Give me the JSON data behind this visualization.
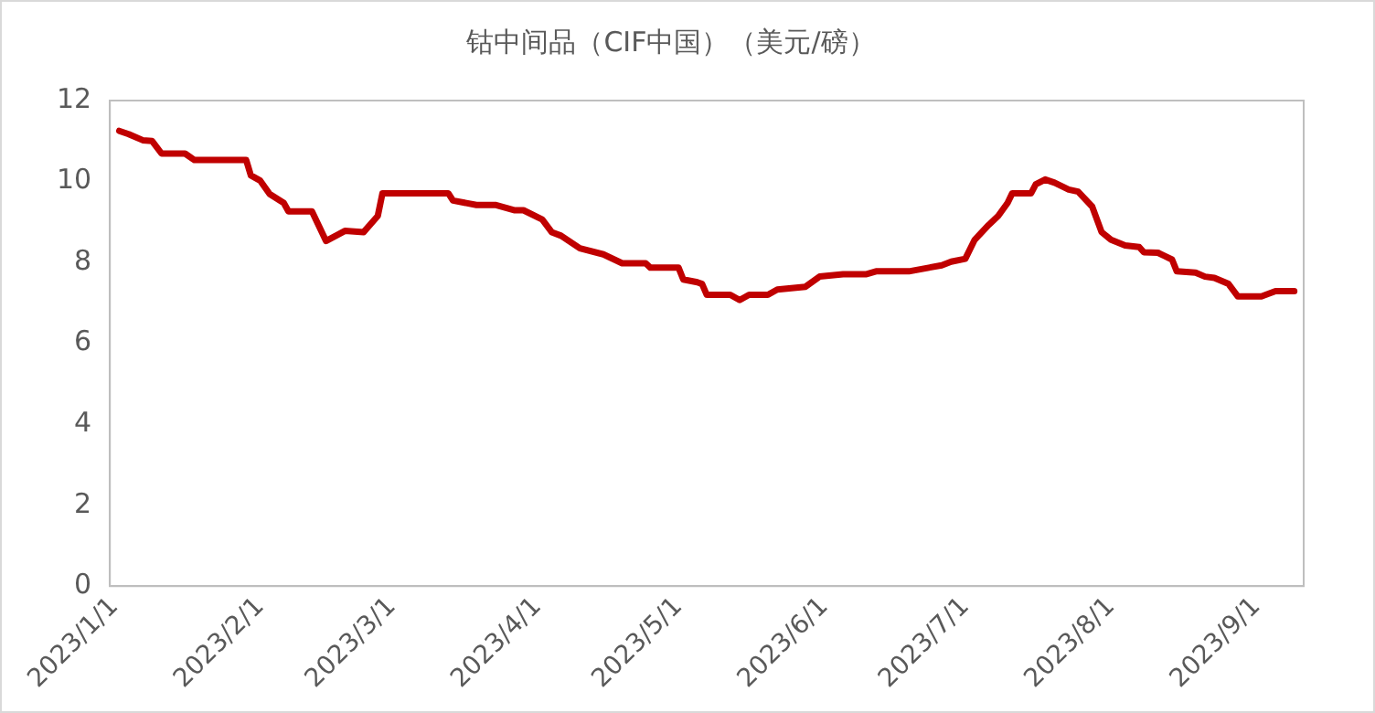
{
  "chart_data": {
    "type": "line",
    "title": "钴中间品（CIF中国）（美元/磅）",
    "x": [
      "2023-01-02",
      "2023-01-04",
      "2023-01-07",
      "2023-01-09",
      "2023-01-11",
      "2023-01-16",
      "2023-01-18",
      "2023-01-29",
      "2023-01-30",
      "2023-02-01",
      "2023-02-03",
      "2023-02-06",
      "2023-02-07",
      "2023-02-12",
      "2023-02-15",
      "2023-02-19",
      "2023-02-23",
      "2023-02-26",
      "2023-02-27",
      "2023-03-13",
      "2023-03-14",
      "2023-03-19",
      "2023-03-23",
      "2023-03-27",
      "2023-03-29",
      "2023-04-02",
      "2023-04-04",
      "2023-04-06",
      "2023-04-10",
      "2023-04-15",
      "2023-04-19",
      "2023-04-24",
      "2023-04-25",
      "2023-05-01",
      "2023-05-02",
      "2023-05-05",
      "2023-05-06",
      "2023-05-07",
      "2023-05-12",
      "2023-05-14",
      "2023-05-16",
      "2023-05-20",
      "2023-05-22",
      "2023-05-28",
      "2023-05-31",
      "2023-06-05",
      "2023-06-10",
      "2023-06-12",
      "2023-06-19",
      "2023-06-26",
      "2023-06-28",
      "2023-07-01",
      "2023-07-03",
      "2023-07-06",
      "2023-07-08",
      "2023-07-10",
      "2023-07-11",
      "2023-07-15",
      "2023-07-16",
      "2023-07-18",
      "2023-07-20",
      "2023-07-23",
      "2023-07-25",
      "2023-07-28",
      "2023-07-30",
      "2023-08-01",
      "2023-08-04",
      "2023-08-07",
      "2023-08-08",
      "2023-08-11",
      "2023-08-14",
      "2023-08-15",
      "2023-08-19",
      "2023-08-21",
      "2023-08-23",
      "2023-08-26",
      "2023-08-28",
      "2023-09-02",
      "2023-09-05",
      "2023-09-09"
    ],
    "series": [
      {
        "color": "#c00000",
        "values": [
          11.25,
          11.17,
          11.02,
          11.0,
          10.69,
          10.69,
          10.53,
          10.53,
          10.15,
          10.02,
          9.69,
          9.47,
          9.26,
          9.26,
          8.53,
          8.78,
          8.75,
          9.15,
          9.71,
          9.71,
          9.53,
          9.42,
          9.42,
          9.29,
          9.29,
          9.06,
          8.75,
          8.66,
          8.35,
          8.2,
          7.98,
          7.98,
          7.87,
          7.87,
          7.58,
          7.51,
          7.47,
          7.2,
          7.2,
          7.07,
          7.2,
          7.2,
          7.33,
          7.4,
          7.65,
          7.71,
          7.71,
          7.78,
          7.78,
          7.93,
          8.02,
          8.09,
          8.56,
          8.93,
          9.15,
          9.47,
          9.71,
          9.71,
          9.93,
          10.05,
          9.97,
          9.8,
          9.75,
          9.38,
          8.75,
          8.56,
          8.42,
          8.38,
          8.25,
          8.24,
          8.07,
          7.78,
          7.75,
          7.65,
          7.62,
          7.47,
          7.16,
          7.16,
          7.29,
          7.29
        ]
      }
    ],
    "xlim": [
      "2022-12-31",
      "2023-09-11"
    ],
    "xticks": [
      {
        "value": "2023-01-01",
        "label": "2023/1/1"
      },
      {
        "value": "2023-02-01",
        "label": "2023/2/1"
      },
      {
        "value": "2023-03-01",
        "label": "2023/3/1"
      },
      {
        "value": "2023-04-01",
        "label": "2023/4/1"
      },
      {
        "value": "2023-05-01",
        "label": "2023/5/1"
      },
      {
        "value": "2023-06-01",
        "label": "2023/6/1"
      },
      {
        "value": "2023-07-01",
        "label": "2023/7/1"
      },
      {
        "value": "2023-08-01",
        "label": "2023/8/1"
      },
      {
        "value": "2023-09-01",
        "label": "2023/9/1"
      }
    ],
    "ylim": [
      0,
      12
    ],
    "yticks": [
      0,
      2,
      4,
      6,
      8,
      10,
      12
    ],
    "grid": false,
    "legend": false,
    "marker": "none",
    "line_style": "solid"
  }
}
